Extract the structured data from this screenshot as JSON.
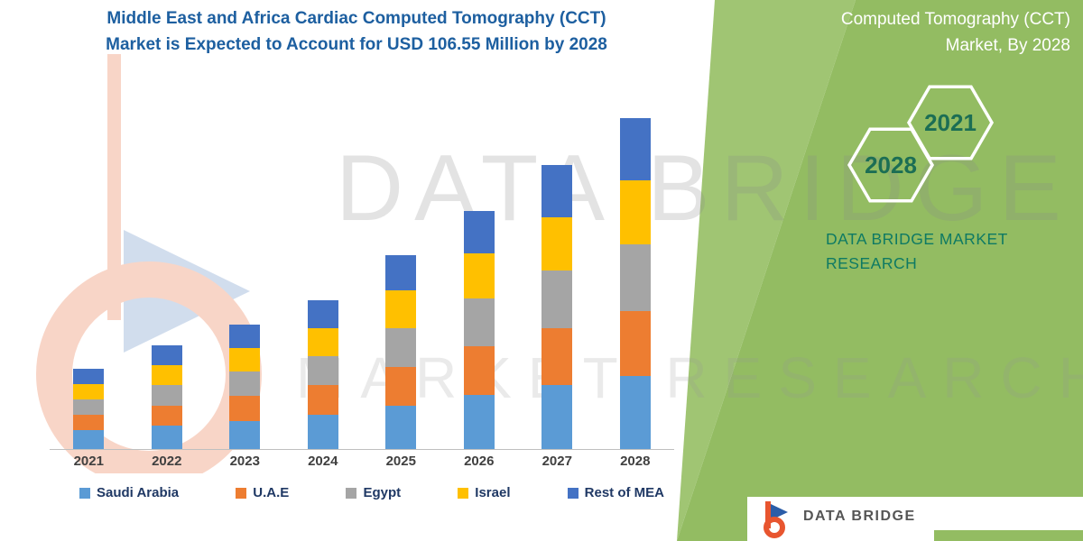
{
  "title": {
    "line1": "Middle East and Africa Cardiac Computed Tomography (CCT)",
    "line2": "Market is Expected to Account for USD 106.55 Million by 2028"
  },
  "side_panel": {
    "heading_line1": "Computed Tomography (CCT)",
    "heading_line2": "Market, By 2028",
    "hex_year_back": "2028",
    "hex_year_front": "2021",
    "brand_line1": "DATA BRIDGE MARKET",
    "brand_line2": "RESEARCH"
  },
  "watermark": {
    "line1": "DATA BRIDGE",
    "line2": "MARKET RESEARCH"
  },
  "footer": {
    "brand": "DATA BRIDGE"
  },
  "colors": {
    "panel_green": "#93BC62",
    "panel_green_light": "#A0C573",
    "title_blue": "#1D5FA0",
    "brand_teal": "#0E7A63",
    "hex_text": "#1C6E54",
    "axis_text": "#404040",
    "legend_text": "#1F3864"
  },
  "chart_data": {
    "type": "bar",
    "stacked": true,
    "title": "Middle East and Africa Cardiac Computed Tomography (CCT) Market is Expected to Account for USD 106.55 Million by 2028",
    "annotation": "USD 106.55 Million by 2028",
    "unit": "USD Million",
    "xlabel": "",
    "ylabel": "",
    "value_axis_visible": false,
    "grid": false,
    "legend_position": "bottom",
    "categories": [
      "2021",
      "2022",
      "2023",
      "2024",
      "2025",
      "2026",
      "2027",
      "2028"
    ],
    "series": [
      {
        "name": "Saudi Arabia",
        "color": "#5B9BD5",
        "values": [
          6.0,
          7.5,
          9.0,
          11.0,
          14.0,
          17.5,
          20.5,
          23.5
        ]
      },
      {
        "name": "U.A.E",
        "color": "#ED7D31",
        "values": [
          5.0,
          6.5,
          8.0,
          9.5,
          12.5,
          15.5,
          18.5,
          21.0
        ]
      },
      {
        "name": "Egypt",
        "color": "#A5A5A5",
        "values": [
          5.0,
          6.5,
          8.0,
          9.5,
          12.5,
          15.5,
          18.5,
          21.5
        ]
      },
      {
        "name": "Israel",
        "color": "#FFC000",
        "values": [
          5.0,
          6.5,
          7.5,
          9.0,
          12.0,
          14.5,
          17.0,
          20.5
        ]
      },
      {
        "name": "Rest of MEA",
        "color": "#4472C4",
        "values": [
          5.0,
          6.5,
          7.5,
          8.8,
          11.5,
          13.8,
          17.0,
          20.05
        ]
      }
    ],
    "estimated_totals": [
      26.0,
      33.5,
      40.0,
      47.8,
      62.5,
      76.8,
      91.5,
      106.55
    ]
  }
}
